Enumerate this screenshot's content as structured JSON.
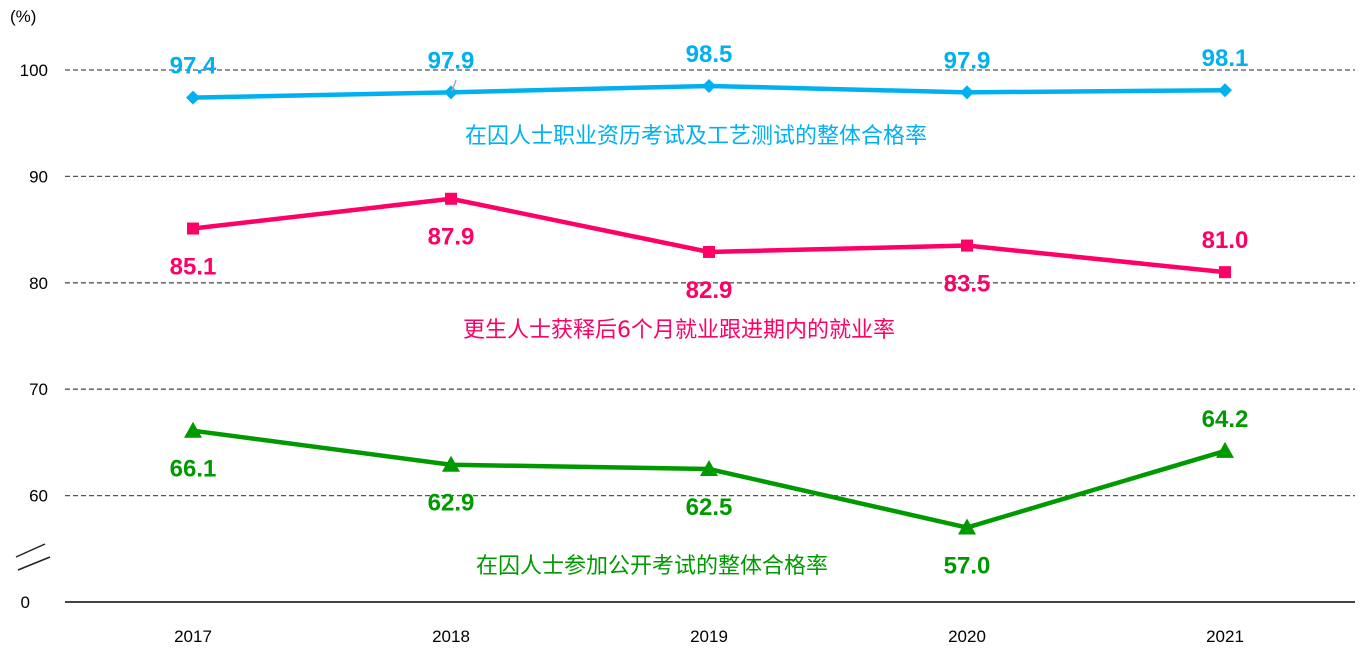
{
  "chart_data": {
    "type": "line",
    "yunit": "(%)",
    "categories": [
      "2017",
      "2018",
      "2019",
      "2020",
      "2021"
    ],
    "yticks": [
      "0",
      "60",
      "70",
      "80",
      "90",
      "100"
    ],
    "ylim": [
      0,
      100
    ],
    "axis_break": true,
    "grid": "dashed horizontal",
    "series": [
      {
        "name": "在囚人士职业资历考试及工艺测试的整体合格率",
        "values": [
          97.4,
          97.9,
          98.5,
          97.9,
          98.1
        ],
        "labels": [
          "97.4",
          "97.9",
          "98.5",
          "97.9",
          "98.1"
        ],
        "color": "#00b0f0",
        "marker": "diamond"
      },
      {
        "name": "更生人士获释后6个月就业跟进期内的就业率",
        "values": [
          85.1,
          87.9,
          82.9,
          83.5,
          81.0
        ],
        "labels": [
          "85.1",
          "87.9",
          "82.9",
          "83.5",
          "81.0"
        ],
        "color": "#ff0066",
        "marker": "square"
      },
      {
        "name": "在囚人士参加公开考试的整体合格率",
        "values": [
          66.1,
          62.9,
          62.5,
          57.0,
          64.2
        ],
        "labels": [
          "66.1",
          "62.9",
          "62.5",
          "57.0",
          "64.2"
        ],
        "color": "#009a00",
        "marker": "triangle"
      }
    ]
  }
}
